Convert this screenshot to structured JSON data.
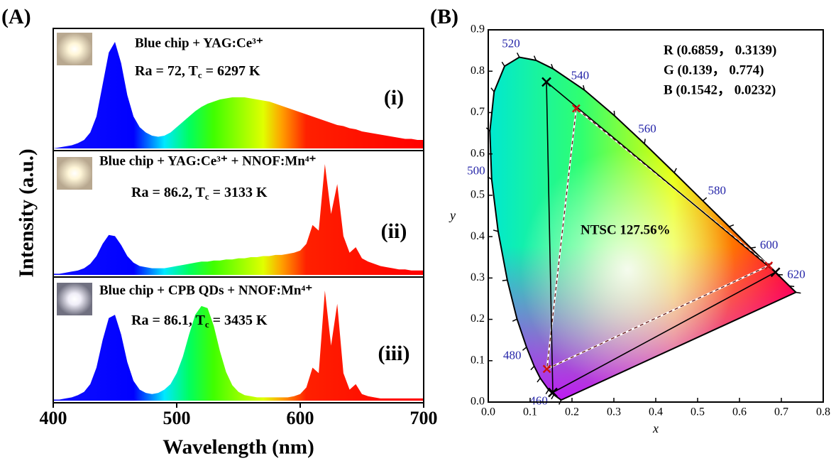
{
  "chart_data": [
    {
      "type": "area",
      "panel": "(A)",
      "xlabel": "Wavelength (nm)",
      "ylabel": "Intensity (a.u.)",
      "xlim": [
        400,
        700
      ],
      "xticks": [
        400,
        500,
        600,
        700
      ],
      "x": [
        400,
        405,
        410,
        415,
        420,
        425,
        430,
        435,
        440,
        445,
        450,
        455,
        460,
        465,
        470,
        475,
        480,
        485,
        490,
        495,
        500,
        505,
        510,
        515,
        520,
        525,
        530,
        535,
        540,
        545,
        550,
        555,
        560,
        565,
        570,
        575,
        580,
        585,
        590,
        595,
        600,
        605,
        610,
        615,
        620,
        625,
        630,
        635,
        640,
        645,
        650,
        655,
        660,
        665,
        670,
        675,
        680,
        685,
        690,
        695,
        700
      ],
      "series": [
        {
          "label": "Blue chip + YAG:Ce³⁺",
          "annotation": {
            "prefix": "Ra = 72, T",
            "sub": "c",
            "suffix": " = 6297 K"
          },
          "tag": "(i)",
          "values": [
            0.0,
            0.01,
            0.02,
            0.03,
            0.05,
            0.08,
            0.15,
            0.3,
            0.6,
            0.9,
            1.0,
            0.8,
            0.5,
            0.3,
            0.2,
            0.15,
            0.12,
            0.11,
            0.12,
            0.15,
            0.2,
            0.25,
            0.3,
            0.35,
            0.39,
            0.42,
            0.44,
            0.46,
            0.47,
            0.48,
            0.48,
            0.48,
            0.47,
            0.46,
            0.45,
            0.44,
            0.42,
            0.4,
            0.38,
            0.36,
            0.34,
            0.32,
            0.3,
            0.28,
            0.26,
            0.24,
            0.22,
            0.21,
            0.19,
            0.18,
            0.16,
            0.15,
            0.14,
            0.13,
            0.12,
            0.11,
            0.1,
            0.09,
            0.09,
            0.08,
            0.08
          ]
        },
        {
          "label": "Blue chip + YAG:Ce³⁺ + NNOF:Mn⁴⁺",
          "annotation": {
            "prefix": "Ra = 86.2, T",
            "sub": "c",
            "suffix": " = 3133 K"
          },
          "tag": "(ii)",
          "values": [
            0.01,
            0.01,
            0.02,
            0.03,
            0.04,
            0.06,
            0.1,
            0.17,
            0.28,
            0.36,
            0.35,
            0.27,
            0.17,
            0.11,
            0.08,
            0.07,
            0.06,
            0.06,
            0.06,
            0.07,
            0.08,
            0.09,
            0.1,
            0.11,
            0.12,
            0.12,
            0.13,
            0.13,
            0.14,
            0.14,
            0.15,
            0.15,
            0.16,
            0.16,
            0.17,
            0.17,
            0.18,
            0.18,
            0.19,
            0.2,
            0.22,
            0.28,
            0.45,
            0.4,
            1.0,
            0.55,
            0.82,
            0.35,
            0.2,
            0.25,
            0.15,
            0.12,
            0.1,
            0.08,
            0.07,
            0.06,
            0.05,
            0.05,
            0.04,
            0.04,
            0.04
          ]
        },
        {
          "label": "Blue chip + CPB QDs + NNOF:Mn⁴⁺",
          "annotation": {
            "prefix": "Ra = 86.1, T",
            "sub": "c",
            "suffix": " = 3435 K"
          },
          "tag": "(iii)",
          "values": [
            0.01,
            0.01,
            0.02,
            0.03,
            0.05,
            0.08,
            0.15,
            0.3,
            0.55,
            0.75,
            0.78,
            0.6,
            0.35,
            0.18,
            0.1,
            0.07,
            0.06,
            0.07,
            0.1,
            0.15,
            0.25,
            0.4,
            0.6,
            0.78,
            0.86,
            0.84,
            0.68,
            0.45,
            0.26,
            0.14,
            0.08,
            0.05,
            0.04,
            0.03,
            0.03,
            0.03,
            0.03,
            0.03,
            0.03,
            0.04,
            0.06,
            0.12,
            0.3,
            0.25,
            1.0,
            0.5,
            0.88,
            0.25,
            0.1,
            0.15,
            0.06,
            0.04,
            0.03,
            0.02,
            0.02,
            0.02,
            0.02,
            0.02,
            0.02,
            0.02,
            0.02
          ]
        }
      ]
    },
    {
      "type": "cie",
      "panel": "(B)",
      "xlabel": "x",
      "ylabel": "y",
      "xlim": [
        0,
        0.8
      ],
      "ylim": [
        0,
        0.9
      ],
      "xticks": [
        {
          "value": 0,
          "label": "0.0"
        },
        0.1,
        0.2,
        0.3,
        0.4,
        0.5,
        0.6,
        0.7,
        0.8
      ],
      "yticks": [
        {
          "value": 0,
          "label": "0.0"
        },
        0.1,
        0.2,
        0.3,
        0.4,
        0.5,
        0.6,
        0.7,
        0.8,
        0.9
      ],
      "locus": {
        "wavelength_labels": [
          null,
          null,
          460,
          null,
          null,
          480,
          null,
          null,
          null,
          500,
          null,
          null,
          null,
          520,
          null,
          null,
          540,
          null,
          560,
          null,
          580,
          null,
          600,
          null,
          620,
          null,
          null
        ],
        "x": [
          0.1741,
          0.1566,
          0.144,
          0.1241,
          0.1096,
          0.0913,
          0.0687,
          0.0454,
          0.0235,
          0.0082,
          0.0039,
          0.0139,
          0.0389,
          0.0743,
          0.1142,
          0.1547,
          0.2296,
          0.3016,
          0.3731,
          0.4441,
          0.5125,
          0.5752,
          0.627,
          0.6658,
          0.6915,
          0.719,
          0.7347
        ],
        "y": [
          0.005,
          0.0177,
          0.0297,
          0.0578,
          0.0868,
          0.1327,
          0.2007,
          0.295,
          0.4127,
          0.5384,
          0.6548,
          0.7502,
          0.812,
          0.8338,
          0.8262,
          0.8059,
          0.7543,
          0.6923,
          0.6245,
          0.5547,
          0.4866,
          0.4242,
          0.3725,
          0.334,
          0.3083,
          0.2809,
          0.2653
        ]
      },
      "primaries": {
        "labels": [
          "R (0.6859， 0.3139)",
          "G (0.139， 0.774)",
          "B (0.1542， 0.0232)"
        ],
        "x": [
          0.6859,
          0.139,
          0.1542
        ],
        "y": [
          0.3139,
          0.774,
          0.0232
        ]
      },
      "reference": {
        "x": [
          0.67,
          0.21,
          0.14
        ],
        "y": [
          0.33,
          0.71,
          0.08
        ]
      },
      "annotation": "NTSC 127.56%"
    }
  ]
}
